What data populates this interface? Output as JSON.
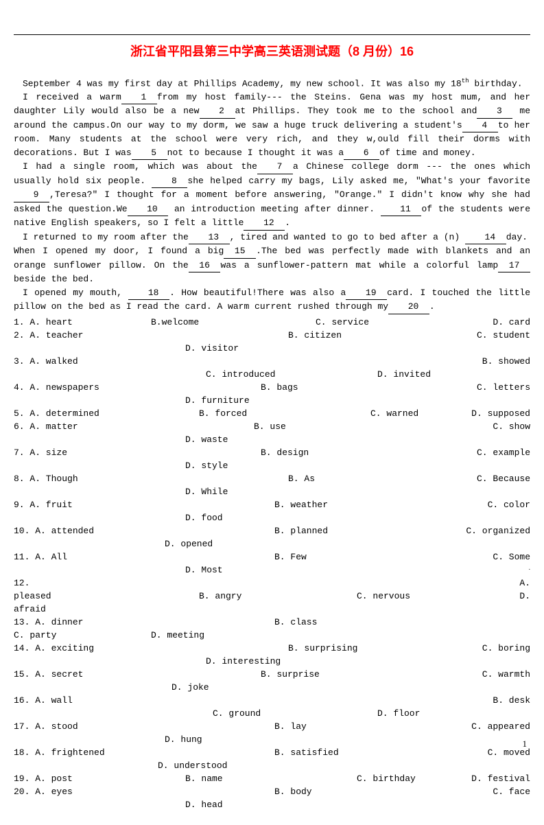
{
  "title": "浙江省平阳县第三中学高三英语测试题（8 月份）16",
  "passage": {
    "p1": "September 4 was my first day at Phillips Academy, my new school. It was also my 18",
    "p1_sup": "th",
    "p1_end": " birthday.",
    "p2a": "     I received a warm",
    "b1": "1",
    "p2b": "from my host family--- the Steins. Gena was my host mum, and her daughter Lily would also be a new",
    "b2": "2",
    "p2c": "at Phillips. They took me to the school and",
    "b3": "3",
    "p2d": "  me around the campus.On our way to my dorm, we saw a huge truck delivering a student's",
    "b4": "4",
    "p2e": "to her room. Many students at the school were very rich, and they w,ould fill their dorms with decorations. But I was",
    "b5": "5",
    "p2f": "not to because I thought it was a",
    "b6": "6",
    "p2g": "of time and money.",
    "p3a": "     I had a single room, which was about the",
    "b7": "7",
    "p3b": "a Chinese college dorm --- the ones which usually hold six people.  ",
    "b8": "8",
    "p3c": "she helped carry my bags, Lily asked me, \"What's your favorite",
    "b9": "9",
    "p3d": ",Teresa?\" I thought for a moment before answering, \"Orange.\" I didn't know why she had asked the question.We",
    "b10": "10",
    "p3e": " an introduction meeting after dinner.  ",
    "b11": "11",
    "p3f": "of the students were native English speakers, so I felt a little",
    "b12": "12",
    "p3g": ".",
    "p4a": "  I returned to my room after the",
    "b13": "13",
    "p4b": ",  tired and wanted to go to bed after a (n) ",
    "b14": "14",
    "p4c": "day.",
    "p5a": "When I opened my door, I found a big",
    "b15": "15",
    "p5b": ".The bed was perfectly made with blankets and an orange sunflower pillow. On the",
    "b16": "16",
    "p5c": "was a sunflower-pattern mat while a colorful lamp",
    "b17": "17",
    "p5d": "beside the bed.",
    "p6a": "  I opened my mouth, ",
    "b18": "18",
    "p6b": ". How beautiful!There was also a",
    "b19": "19",
    "p6c": "card. I touched the little pillow on the bed as I read the card. A warm current rushed through my",
    "b20": "20",
    "p6d": "."
  },
  "questions": [
    {
      "n": "1",
      "a": "A. heart",
      "b": "B.welcome",
      "c": "C. service",
      "d": "D. card"
    },
    {
      "n": "2",
      "a": "A.  teacher",
      "b": "B.   citizen",
      "c": "C.  student",
      "d": "D.  visitor"
    },
    {
      "n": "3",
      "a": "A.    walked",
      "b": "B. showed",
      "c": "C.   introduced",
      "d": "D.  invited"
    },
    {
      "n": "4",
      "a": "A.   newspapers",
      "b": "B.   bags",
      "c": "C. letters",
      "d": "D. furniture"
    },
    {
      "n": "5",
      "a": "A.  determined",
      "b": "B.  forced",
      "c": "C.   warned",
      "d": "D. supposed"
    },
    {
      "n": "6",
      "a": "A.  matter",
      "b": "B.   use",
      "c": "C.  show",
      "d": "D. waste"
    },
    {
      "n": "7",
      "a": "A.    size",
      "b": "B.   design",
      "c": "C. example",
      "d": "D.  style"
    },
    {
      "n": "8",
      "a": "A.   Though",
      "b": "B.   As",
      "c": "C. Because",
      "d": "D. While"
    },
    {
      "n": "9",
      "a": "A.  fruit",
      "b": "B.   weather",
      "c": "C.  color",
      "d": "D.  food"
    },
    {
      "n": "10",
      "a": "A.   attended",
      "b": "B.   planned",
      "c": "C.  organized",
      "d": "D. opened"
    },
    {
      "n": "11",
      "a": "A.   All",
      "b": "B.   Few",
      "c": "C.  Some",
      "d": "D. Most"
    },
    {
      "n": "12",
      "a": "A.  pleased",
      "b": "B.   angry",
      "c": "C.   nervous",
      "d": "D.  afraid"
    },
    {
      "n": "13",
      "a": "A.   dinner",
      "b": "B.   class",
      "c": "C.   party",
      "d": "D. meeting"
    },
    {
      "n": "14",
      "a": "A.   exciting",
      "b": "B.   surprising",
      "c": "C.  boring",
      "d": "D.  interesting"
    },
    {
      "n": "15",
      "a": "A.  secret",
      "b": "B.   surprise",
      "c": "C.  warmth",
      "d": "D. joke"
    },
    {
      "n": "16",
      "a": "A.    wall",
      "b": "B. desk",
      "c": "C.  ground",
      "d": "D.  floor"
    },
    {
      "n": "17",
      "a": "A.  stood",
      "b": "B.   lay",
      "c": "C. appeared",
      "d": "D. hung"
    },
    {
      "n": "18",
      "a": "A.  frightened",
      "b": "B.   satisfied",
      "c": "C.  moved",
      "d": "D.  understood"
    },
    {
      "n": "19",
      "a": "A.  post",
      "b": "B. name",
      "c": "C. birthday",
      "d": "D. festival"
    },
    {
      "n": "20",
      "a": "A.  eyes",
      "b": "B.   body",
      "c": "C.  face",
      "d": "D.  head"
    }
  ],
  "page_number": "1"
}
